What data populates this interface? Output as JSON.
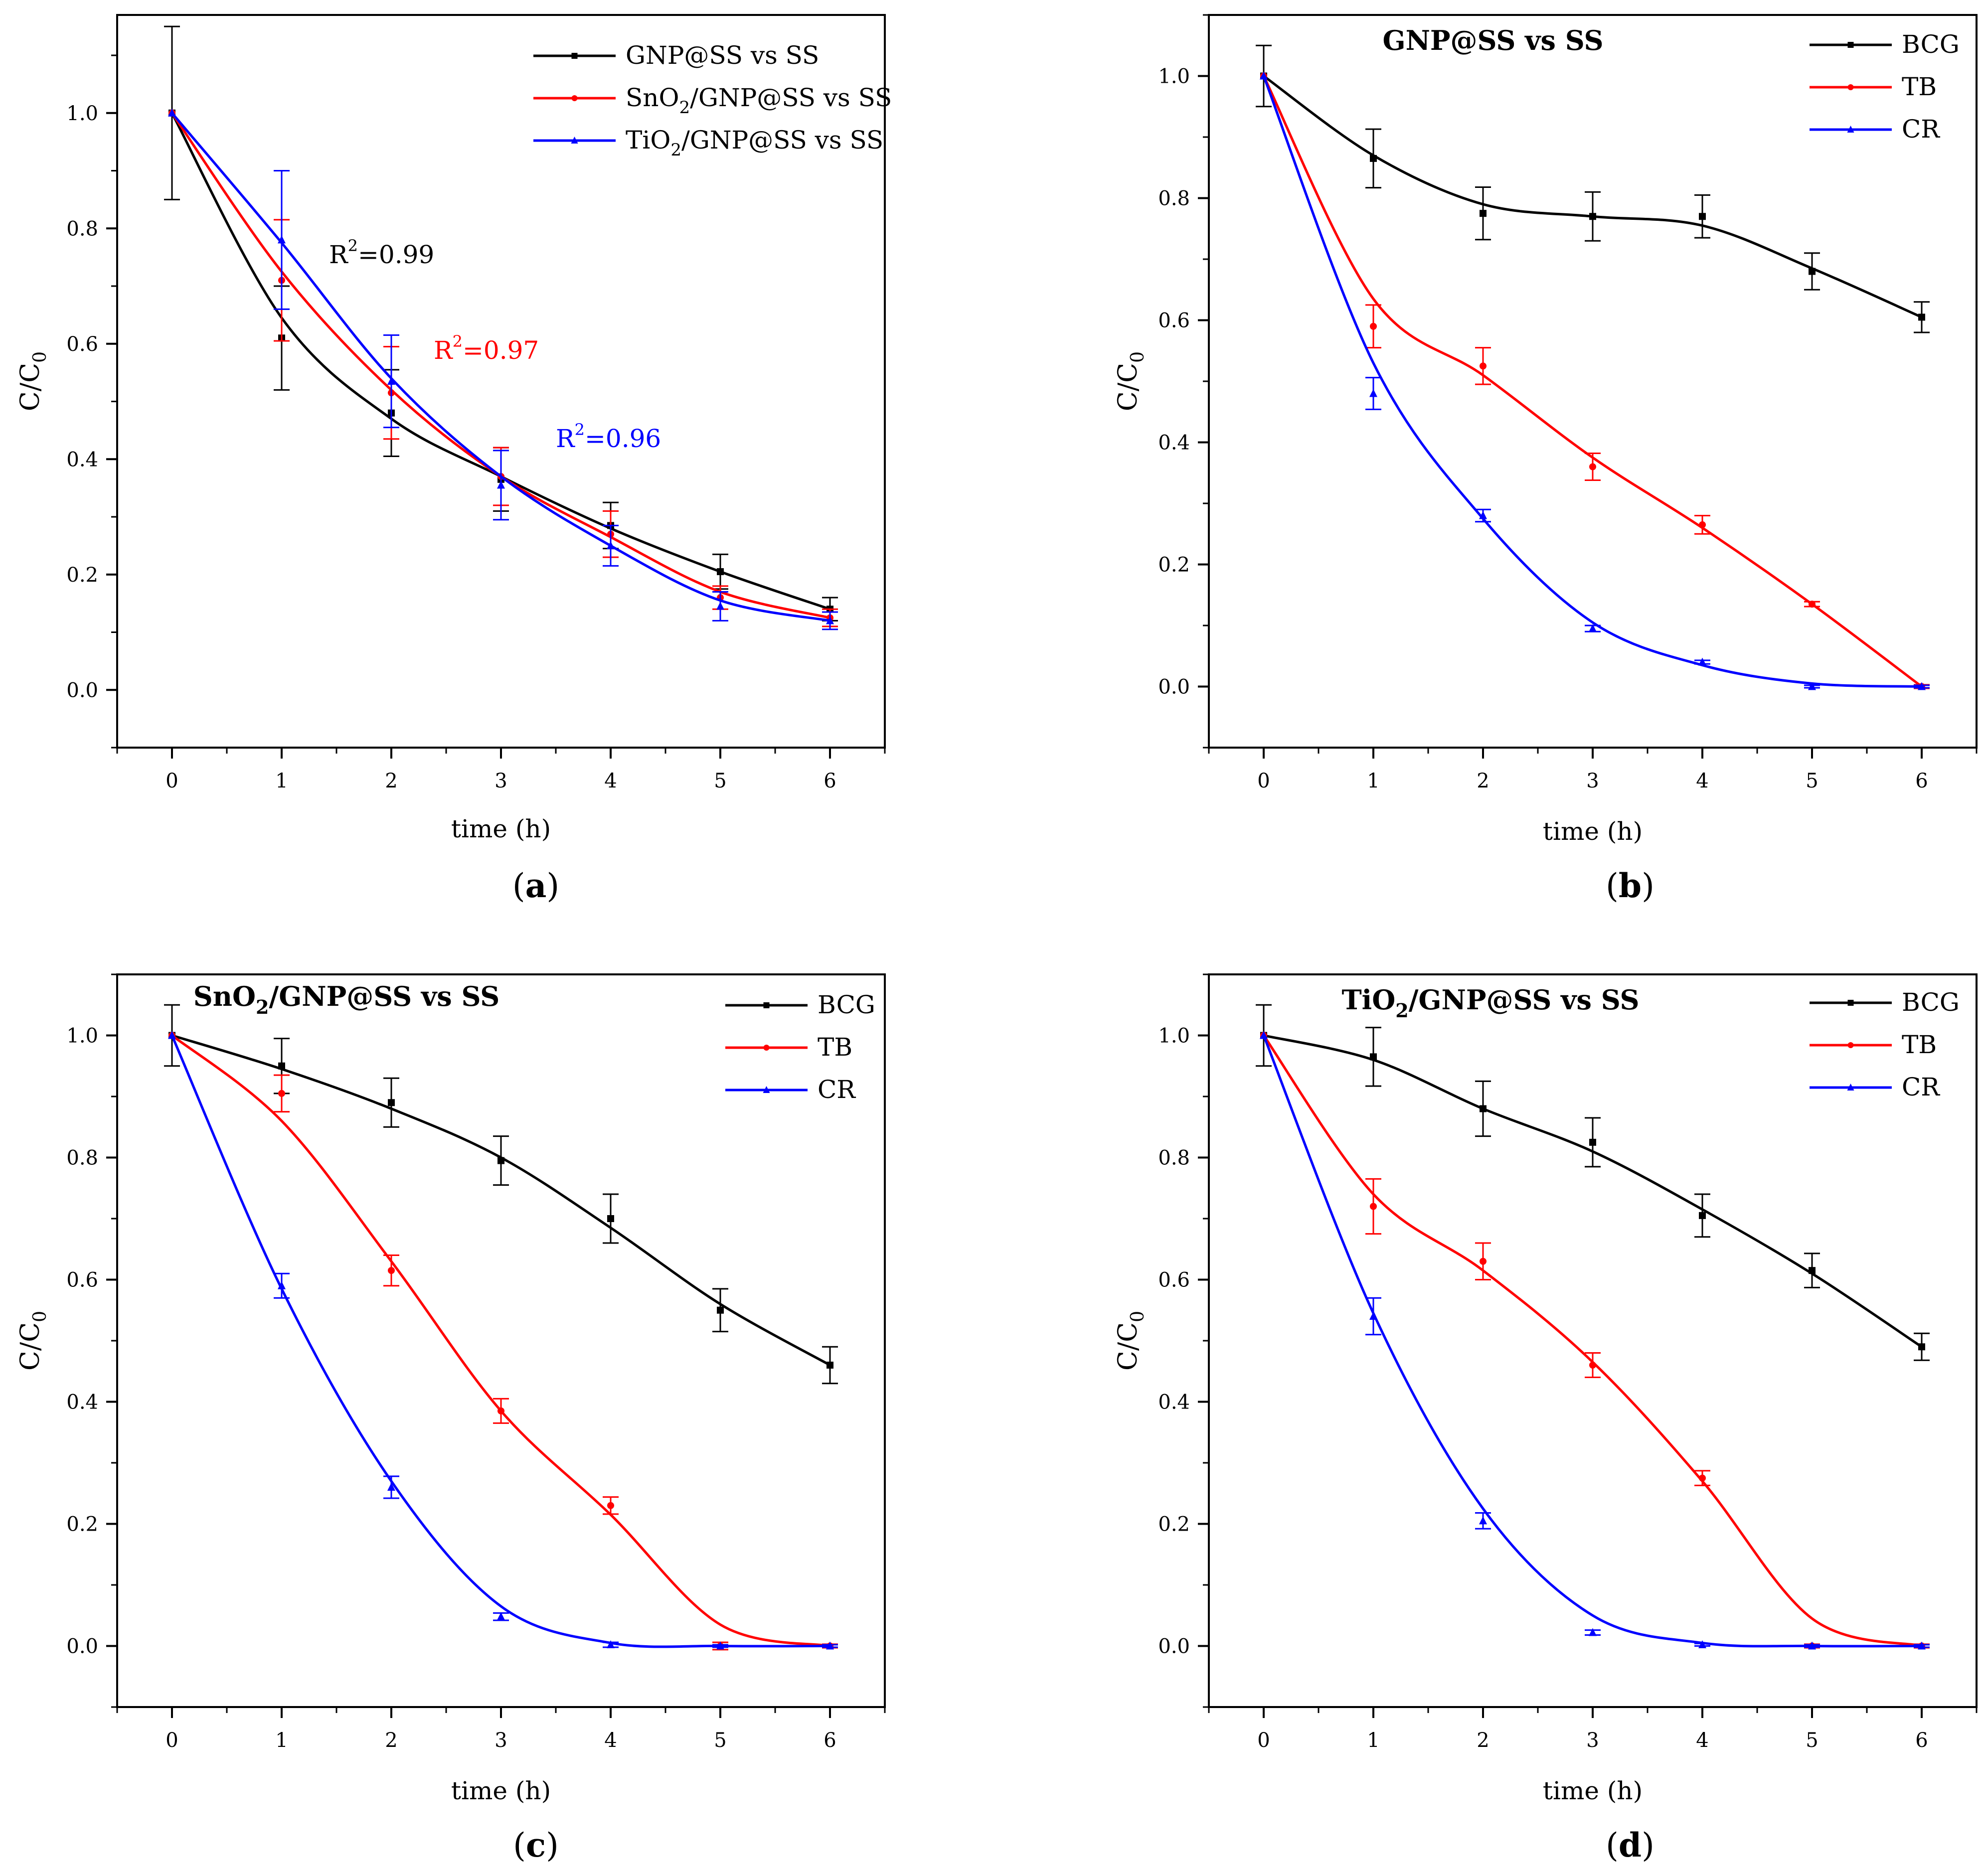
{
  "chart_data": [
    {
      "type": "line",
      "label": "(a)",
      "label_letter": "a",
      "title": "",
      "xlabel": "time (h)",
      "ylabel": "C/C0",
      "ylabel_main": "C/C",
      "ylabel_sub": "0",
      "xlim": [
        -0.5,
        6.5
      ],
      "ylim": [
        -0.1,
        1.17
      ],
      "xticks": [
        0,
        1,
        2,
        3,
        4,
        5,
        6
      ],
      "yticks": [
        0.0,
        0.2,
        0.4,
        0.6,
        0.8,
        1.0
      ],
      "ytick_labels": [
        "0.0",
        "0.2",
        "0.4",
        "0.6",
        "0.8",
        "1.0"
      ],
      "legend_position": "top-right",
      "x": [
        0,
        1,
        2,
        3,
        4,
        5,
        6
      ],
      "series": [
        {
          "name": "GNP@SS vs SS",
          "legend_parts": [
            {
              "t": "GNP@SS vs SS"
            }
          ],
          "color": "#000000",
          "marker": "square",
          "values": [
            1.0,
            0.61,
            0.48,
            0.365,
            0.285,
            0.205,
            0.14
          ],
          "errors": [
            0.15,
            0.09,
            0.075,
            0.055,
            0.04,
            0.03,
            0.02
          ],
          "fit": [
            1.0,
            0.645,
            0.47,
            0.37,
            0.28,
            0.205,
            0.14
          ]
        },
        {
          "name": "SnO2/GNP@SS vs SS",
          "legend_parts": [
            {
              "t": "SnO"
            },
            {
              "t": "2",
              "sub": true
            },
            {
              "t": "/GNP@SS vs SS"
            }
          ],
          "color": "#ff0000",
          "marker": "circle",
          "values": [
            1.0,
            0.71,
            0.515,
            0.37,
            0.27,
            0.16,
            0.125
          ],
          "errors": [
            0.0,
            0.105,
            0.08,
            0.05,
            0.04,
            0.02,
            0.015
          ],
          "fit": [
            1.0,
            0.725,
            0.52,
            0.37,
            0.265,
            0.17,
            0.125
          ]
        },
        {
          "name": "TiO2/GNP@SS vs SS",
          "legend_parts": [
            {
              "t": "TiO"
            },
            {
              "t": "2",
              "sub": true
            },
            {
              "t": "/GNP@SS vs SS"
            }
          ],
          "color": "#0000ff",
          "marker": "triangle",
          "values": [
            1.0,
            0.78,
            0.535,
            0.355,
            0.25,
            0.145,
            0.12
          ],
          "errors": [
            0.0,
            0.12,
            0.08,
            0.06,
            0.035,
            0.025,
            0.015
          ],
          "fit": [
            1.0,
            0.775,
            0.54,
            0.37,
            0.25,
            0.155,
            0.12
          ]
        }
      ],
      "annotations": [
        {
          "main": "R",
          "sup": "2",
          "rest": "=0.99",
          "color": "#000000",
          "x": 1.45,
          "y": 0.735
        },
        {
          "main": "R",
          "sup": "2",
          "rest": "=0.97",
          "color": "#ff0000",
          "x": 2.42,
          "y": 0.555
        },
        {
          "main": "R",
          "sup": "2",
          "rest": "=0.96",
          "color": "#0000ff",
          "x": 3.53,
          "y": 0.395
        }
      ]
    },
    {
      "type": "line",
      "label": "(b)",
      "label_letter": "b",
      "title": "GNP@SS vs SS",
      "title_parts": [
        {
          "t": "GNP@SS vs SS"
        }
      ],
      "xlabel": "time (h)",
      "ylabel": "C/C0",
      "ylabel_main": "C/C",
      "ylabel_sub": "0",
      "xlim": [
        -0.5,
        6.5
      ],
      "ylim": [
        -0.1,
        1.1
      ],
      "xticks": [
        0,
        1,
        2,
        3,
        4,
        5,
        6
      ],
      "yticks": [
        0.0,
        0.2,
        0.4,
        0.6,
        0.8,
        1.0
      ],
      "ytick_labels": [
        "0.0",
        "0.2",
        "0.4",
        "0.6",
        "0.8",
        "1.0"
      ],
      "legend_position": "top-right",
      "x": [
        0,
        1,
        2,
        3,
        4,
        5,
        6
      ],
      "series": [
        {
          "name": "BCG",
          "legend_parts": [
            {
              "t": "BCG"
            }
          ],
          "color": "#000000",
          "marker": "square",
          "values": [
            1.0,
            0.865,
            0.775,
            0.77,
            0.77,
            0.68,
            0.605
          ],
          "errors": [
            0.05,
            0.048,
            0.043,
            0.04,
            0.035,
            0.03,
            0.025
          ],
          "fit": [
            1.0,
            0.87,
            0.79,
            0.77,
            0.755,
            0.685,
            0.605
          ]
        },
        {
          "name": "TB",
          "legend_parts": [
            {
              "t": "TB"
            }
          ],
          "color": "#ff0000",
          "marker": "circle",
          "values": [
            1.0,
            0.59,
            0.525,
            0.36,
            0.265,
            0.135,
            0.0
          ],
          "errors": [
            0.0,
            0.035,
            0.03,
            0.022,
            0.015,
            0.004,
            0.003
          ],
          "fit": [
            1.0,
            0.635,
            0.51,
            0.375,
            0.26,
            0.135,
            0.0
          ]
        },
        {
          "name": "CR",
          "legend_parts": [
            {
              "t": "CR"
            }
          ],
          "color": "#0000ff",
          "marker": "triangle",
          "values": [
            1.0,
            0.48,
            0.28,
            0.095,
            0.04,
            0.0,
            0.0
          ],
          "errors": [
            0.0,
            0.026,
            0.01,
            0.005,
            0.003,
            0.002,
            0.002
          ],
          "fit": [
            1.0,
            0.53,
            0.275,
            0.105,
            0.035,
            0.005,
            0.0
          ]
        }
      ]
    },
    {
      "type": "line",
      "label": "(c)",
      "label_letter": "c",
      "title": "SnO2/GNP@SS vs SS",
      "title_parts": [
        {
          "t": "SnO"
        },
        {
          "t": "2",
          "sub": true
        },
        {
          "t": "/GNP@SS vs SS"
        }
      ],
      "xlabel": "time (h)",
      "ylabel": "C/C0",
      "ylabel_main": "C/C",
      "ylabel_sub": "0",
      "xlim": [
        -0.5,
        6.5
      ],
      "ylim": [
        -0.1,
        1.1
      ],
      "xticks": [
        0,
        1,
        2,
        3,
        4,
        5,
        6
      ],
      "yticks": [
        0.0,
        0.2,
        0.4,
        0.6,
        0.8,
        1.0
      ],
      "ytick_labels": [
        "0.0",
        "0.2",
        "0.4",
        "0.6",
        "0.8",
        "1.0"
      ],
      "legend_position": "top-right",
      "x": [
        0,
        1,
        2,
        3,
        4,
        5,
        6
      ],
      "series": [
        {
          "name": "BCG",
          "legend_parts": [
            {
              "t": "BCG"
            }
          ],
          "color": "#000000",
          "marker": "square",
          "values": [
            1.0,
            0.95,
            0.89,
            0.795,
            0.7,
            0.55,
            0.46
          ],
          "errors": [
            0.05,
            0.045,
            0.04,
            0.04,
            0.04,
            0.035,
            0.03
          ],
          "fit": [
            1.0,
            0.945,
            0.88,
            0.8,
            0.685,
            0.56,
            0.46
          ]
        },
        {
          "name": "TB",
          "legend_parts": [
            {
              "t": "TB"
            }
          ],
          "color": "#ff0000",
          "marker": "circle",
          "values": [
            1.0,
            0.905,
            0.615,
            0.385,
            0.23,
            0.0,
            0.0
          ],
          "errors": [
            0.0,
            0.03,
            0.025,
            0.02,
            0.014,
            0.006,
            0.003
          ],
          "fit": [
            1.0,
            0.86,
            0.63,
            0.385,
            0.215,
            0.035,
            0.0
          ]
        },
        {
          "name": "CR",
          "legend_parts": [
            {
              "t": "CR"
            }
          ],
          "color": "#0000ff",
          "marker": "triangle",
          "values": [
            1.0,
            0.59,
            0.26,
            0.048,
            0.002,
            0.0,
            0.0
          ],
          "errors": [
            0.0,
            0.02,
            0.018,
            0.006,
            0.004,
            0.002,
            0.002
          ],
          "fit": [
            1.0,
            0.585,
            0.27,
            0.065,
            0.005,
            0.0,
            0.0
          ]
        }
      ]
    },
    {
      "type": "line",
      "label": "(d)",
      "label_letter": "d",
      "title": "TiO2/GNP@SS vs SS",
      "title_parts": [
        {
          "t": "TiO"
        },
        {
          "t": "2",
          "sub": true
        },
        {
          "t": "/GNP@SS vs SS"
        }
      ],
      "xlabel": "time (h)",
      "ylabel": "C/C0",
      "ylabel_main": "C/C",
      "ylabel_sub": "0",
      "xlim": [
        -0.5,
        6.5
      ],
      "ylim": [
        -0.1,
        1.1
      ],
      "xticks": [
        0,
        1,
        2,
        3,
        4,
        5,
        6
      ],
      "yticks": [
        0.0,
        0.2,
        0.4,
        0.6,
        0.8,
        1.0
      ],
      "ytick_labels": [
        "0.0",
        "0.2",
        "0.4",
        "0.6",
        "0.8",
        "1.0"
      ],
      "legend_position": "top-right",
      "x": [
        0,
        1,
        2,
        3,
        4,
        5,
        6
      ],
      "series": [
        {
          "name": "BCG",
          "legend_parts": [
            {
              "t": "BCG"
            }
          ],
          "color": "#000000",
          "marker": "square",
          "values": [
            1.0,
            0.965,
            0.88,
            0.825,
            0.705,
            0.615,
            0.49
          ],
          "errors": [
            0.05,
            0.048,
            0.045,
            0.04,
            0.035,
            0.028,
            0.022
          ],
          "fit": [
            1.0,
            0.96,
            0.88,
            0.81,
            0.715,
            0.61,
            0.49
          ]
        },
        {
          "name": "TB",
          "legend_parts": [
            {
              "t": "TB"
            }
          ],
          "color": "#ff0000",
          "marker": "circle",
          "values": [
            1.0,
            0.72,
            0.63,
            0.46,
            0.275,
            0.0,
            0.0
          ],
          "errors": [
            0.0,
            0.045,
            0.03,
            0.02,
            0.012,
            0.003,
            0.003
          ],
          "fit": [
            1.0,
            0.74,
            0.615,
            0.465,
            0.27,
            0.045,
            0.0
          ]
        },
        {
          "name": "CR",
          "legend_parts": [
            {
              "t": "CR"
            }
          ],
          "color": "#0000ff",
          "marker": "triangle",
          "values": [
            1.0,
            0.54,
            0.205,
            0.022,
            0.002,
            0.0,
            0.0
          ],
          "errors": [
            0.0,
            0.03,
            0.013,
            0.004,
            0.002,
            0.002,
            0.002
          ],
          "fit": [
            1.0,
            0.545,
            0.225,
            0.05,
            0.005,
            0.0,
            0.0
          ]
        }
      ]
    }
  ]
}
